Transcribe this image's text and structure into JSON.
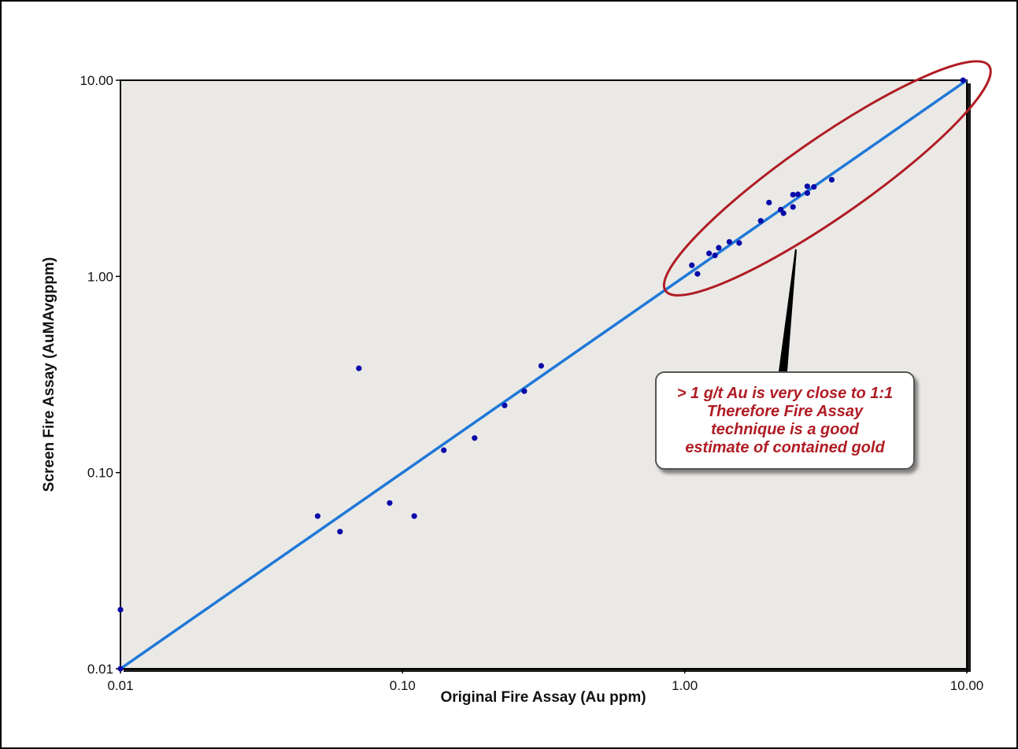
{
  "chart_data": {
    "type": "scatter",
    "title": "",
    "xlabel": "Original Fire Assay (Au ppm)",
    "ylabel": "Screen Fire Assay (AuMAvgppm)",
    "xscale": "log",
    "yscale": "log",
    "xlim": [
      0.01,
      10
    ],
    "ylim": [
      0.01,
      10
    ],
    "xticks": [
      0.01,
      0.1,
      1,
      10
    ],
    "yticks": [
      0.01,
      0.1,
      1,
      10
    ],
    "xtick_labels": [
      "0.01",
      "0.10",
      "1.00",
      "10.00"
    ],
    "ytick_labels": [
      "0.01",
      "0.10",
      "1.00",
      "10.00"
    ],
    "grid": false,
    "reference_line": {
      "x": [
        0.01,
        10
      ],
      "y": [
        0.01,
        10
      ],
      "color": "#1f78d8"
    },
    "points": [
      {
        "x": 0.01,
        "y": 0.02
      },
      {
        "x": 0.01,
        "y": 0.01
      },
      {
        "x": 0.05,
        "y": 0.06
      },
      {
        "x": 0.06,
        "y": 0.05
      },
      {
        "x": 0.07,
        "y": 0.34
      },
      {
        "x": 0.09,
        "y": 0.07
      },
      {
        "x": 0.11,
        "y": 0.06
      },
      {
        "x": 0.14,
        "y": 0.13
      },
      {
        "x": 0.18,
        "y": 0.15
      },
      {
        "x": 0.23,
        "y": 0.22
      },
      {
        "x": 0.27,
        "y": 0.26
      },
      {
        "x": 0.31,
        "y": 0.35
      },
      {
        "x": 1.06,
        "y": 1.14
      },
      {
        "x": 1.11,
        "y": 1.03
      },
      {
        "x": 1.22,
        "y": 1.31
      },
      {
        "x": 1.28,
        "y": 1.28
      },
      {
        "x": 1.32,
        "y": 1.4
      },
      {
        "x": 1.44,
        "y": 1.5
      },
      {
        "x": 1.56,
        "y": 1.48
      },
      {
        "x": 1.86,
        "y": 1.92
      },
      {
        "x": 1.99,
        "y": 2.38
      },
      {
        "x": 2.19,
        "y": 2.19
      },
      {
        "x": 2.24,
        "y": 2.1
      },
      {
        "x": 2.42,
        "y": 2.26
      },
      {
        "x": 2.42,
        "y": 2.61
      },
      {
        "x": 2.52,
        "y": 2.62
      },
      {
        "x": 2.72,
        "y": 2.66
      },
      {
        "x": 2.72,
        "y": 2.88
      },
      {
        "x": 2.87,
        "y": 2.86
      },
      {
        "x": 3.32,
        "y": 3.11
      },
      {
        "x": 9.7,
        "y": 10.0
      }
    ],
    "point_color": "#0a0aa8",
    "plot_background": "#ebe9e6",
    "annotation": {
      "text": "> 1 g/t Au is very close to 1:1\nTherefore Fire Assay\ntechnique is a good\nestimate of contained gold",
      "color": "#b01c24",
      "highlight_ellipse_color": "#b01c24",
      "highlight_region": "x 1.00 – 10.00"
    }
  }
}
